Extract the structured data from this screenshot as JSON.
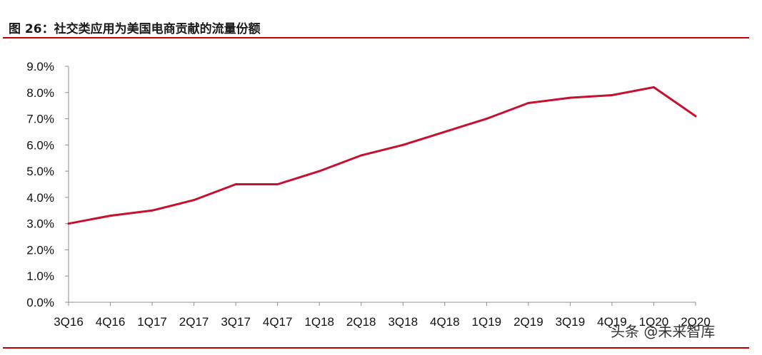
{
  "figure": {
    "title": "图 26：社交类应用为美国电商贡献的流量份额"
  },
  "watermark": {
    "text": "头条 @未来智库"
  },
  "chart_data": {
    "type": "line",
    "title": "",
    "xlabel": "",
    "ylabel": "",
    "categories": [
      "3Q16",
      "4Q16",
      "1Q17",
      "2Q17",
      "3Q17",
      "4Q17",
      "1Q18",
      "2Q18",
      "3Q18",
      "4Q18",
      "1Q19",
      "2Q19",
      "3Q19",
      "4Q19",
      "1Q20",
      "2Q20"
    ],
    "series": [
      {
        "values": [
          3.0,
          3.3,
          3.5,
          3.9,
          4.5,
          4.5,
          5.0,
          5.6,
          6.0,
          6.5,
          7.0,
          7.6,
          7.8,
          7.9,
          8.2,
          7.1
        ],
        "color": "#c8102e"
      }
    ],
    "ylim": [
      0,
      9
    ],
    "yticks": [
      0,
      1,
      2,
      3,
      4,
      5,
      6,
      7,
      8,
      9
    ],
    "ytick_labels": [
      "0.0%",
      "1.0%",
      "2.0%",
      "3.0%",
      "4.0%",
      "5.0%",
      "6.0%",
      "7.0%",
      "8.0%",
      "9.0%"
    ],
    "grid": false,
    "legend": "none"
  }
}
